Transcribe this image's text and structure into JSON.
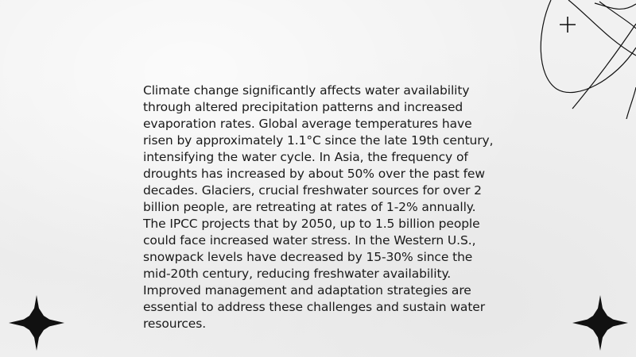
{
  "slide": {
    "body": "Climate change significantly affects water availability through altered precipitation patterns and increased evaporation rates. Global average temperatures have risen by approximately 1.1°C since the late 19th century, intensifying the water cycle. In Asia, the frequency of droughts has increased by about 50% over the past few decades. Glaciers, crucial freshwater sources for over 2 billion people, are retreating at rates of 1-2% annually. The IPCC projects that by 2050, up to 1.5 billion people could face increased water stress. In the Western U.S., snowpack levels have decreased by 15-30% since the mid-20th century, reducing freshwater availability. Improved management and adaptation strategies are essential to address these challenges and sustain water resources."
  },
  "decorations": {
    "top_right": "orbit-lines-icon",
    "bottom_left": "four-point-star-icon",
    "bottom_right": "four-point-star-icon"
  },
  "colors": {
    "background": "#f1f1f1",
    "text": "#1a1a1a",
    "ornament": "#111111"
  }
}
